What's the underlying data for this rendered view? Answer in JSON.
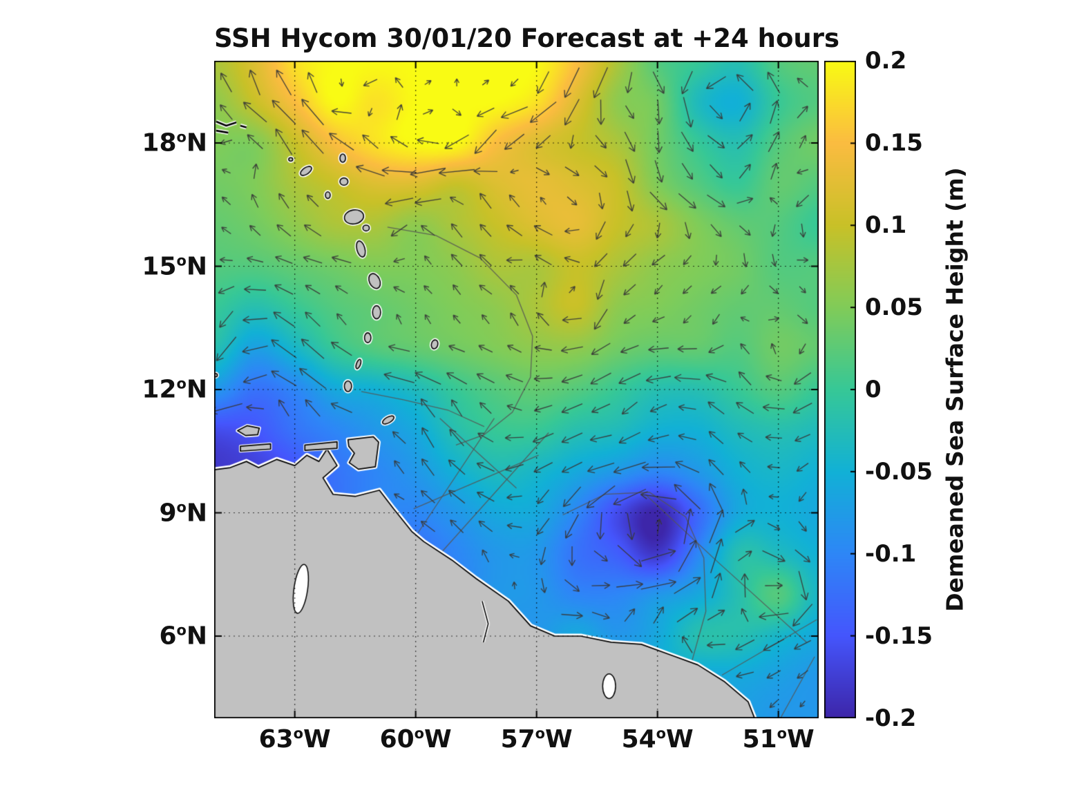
{
  "figure": {
    "title": "SSH Hycom 30/01/20 Forecast at +24 hours",
    "background": "#ffffff"
  },
  "axes": {
    "degree_symbol": "o",
    "x_ticks": [
      {
        "label": "63",
        "hemisphere": "W",
        "lon": -63
      },
      {
        "label": "60",
        "hemisphere": "W",
        "lon": -60
      },
      {
        "label": "57",
        "hemisphere": "W",
        "lon": -57
      },
      {
        "label": "54",
        "hemisphere": "W",
        "lon": -54
      },
      {
        "label": "51",
        "hemisphere": "W",
        "lon": -51
      }
    ],
    "y_ticks": [
      {
        "label": "18",
        "hemisphere": "N",
        "lat": 18
      },
      {
        "label": "15",
        "hemisphere": "N",
        "lat": 15
      },
      {
        "label": "12",
        "hemisphere": "N",
        "lat": 12
      },
      {
        "label": "9",
        "hemisphere": "N",
        "lat": 9
      },
      {
        "label": "6",
        "hemisphere": "N",
        "lat": 6
      }
    ],
    "grid": true
  },
  "colorbar": {
    "label": "Demeaned Sea Surface Height (m)",
    "ticks": [
      "0.2",
      "0.15",
      "0.1",
      "0.05",
      "0",
      "-0.05",
      "-0.1",
      "-0.15",
      "-0.2"
    ],
    "tick_values": [
      0.2,
      0.15,
      0.1,
      0.05,
      0,
      -0.05,
      -0.1,
      -0.15,
      -0.2
    ],
    "range": [
      -0.2,
      0.2
    ],
    "colormap": [
      "#3D26A9",
      "#4556FD",
      "#2E87F7",
      "#12B1D6",
      "#37C897",
      "#81CC59",
      "#C9C128",
      "#FBBC41",
      "#F9FB14"
    ]
  },
  "chart_data": {
    "type": "heatmap",
    "title": "SSH Hycom 30/01/20 Forecast at +24 hours",
    "units": "m",
    "colorbar_label": "Demeaned Sea Surface Height (m)",
    "colorbar_range": [
      -0.2,
      0.2
    ],
    "x_tick_labels": [
      "63°W",
      "60°W",
      "57°W",
      "54°W",
      "51°W"
    ],
    "y_tick_labels": [
      "18°N",
      "15°N",
      "12°N",
      "9°N",
      "6°N"
    ],
    "lon_range": [
      -65,
      -50
    ],
    "lat_range": [
      4,
      20
    ],
    "lon": [
      -65,
      -64,
      -63,
      -62,
      -61,
      -60,
      -59,
      -58,
      -57,
      -56,
      -55,
      -54,
      -53,
      -52,
      -51,
      -50
    ],
    "lat": [
      20,
      19,
      18,
      17,
      16,
      15,
      14,
      13,
      12,
      11,
      10,
      9,
      8,
      7,
      6,
      5,
      4
    ],
    "ssh_m": [
      [
        0.08,
        0.12,
        0.18,
        0.2,
        0.2,
        0.2,
        0.2,
        0.2,
        0.2,
        0.15,
        0.08,
        0.02,
        0.0,
        -0.02,
        0.02,
        0.03
      ],
      [
        0.06,
        0.1,
        0.15,
        0.2,
        0.18,
        0.2,
        0.2,
        0.2,
        0.18,
        0.12,
        0.06,
        0.04,
        -0.03,
        -0.05,
        0.0,
        0.02
      ],
      [
        0.05,
        0.05,
        0.1,
        0.15,
        0.18,
        0.2,
        0.2,
        0.15,
        0.12,
        0.1,
        0.08,
        0.04,
        0.0,
        -0.02,
        0.02,
        0.04
      ],
      [
        0.04,
        0.05,
        0.08,
        0.1,
        0.12,
        0.12,
        0.1,
        0.12,
        0.13,
        0.12,
        0.1,
        0.05,
        0.02,
        0.0,
        0.03,
        0.02
      ],
      [
        0.03,
        0.04,
        0.06,
        0.08,
        0.08,
        0.06,
        0.08,
        0.1,
        0.12,
        0.13,
        0.1,
        0.08,
        0.05,
        0.03,
        0.02,
        0.0
      ],
      [
        0.02,
        0.02,
        0.03,
        0.04,
        0.05,
        0.05,
        0.06,
        0.08,
        0.08,
        0.1,
        0.08,
        0.06,
        0.05,
        0.04,
        0.02,
        0.02
      ],
      [
        0.0,
        -0.02,
        0.0,
        0.02,
        0.03,
        0.04,
        0.05,
        0.06,
        0.08,
        0.1,
        0.06,
        0.05,
        0.04,
        0.03,
        0.03,
        0.02
      ],
      [
        -0.02,
        -0.07,
        -0.04,
        0.0,
        0.02,
        0.03,
        0.04,
        0.05,
        0.06,
        0.06,
        0.04,
        0.03,
        0.03,
        0.02,
        0.04,
        0.03
      ],
      [
        -0.08,
        -0.12,
        -0.1,
        -0.06,
        -0.05,
        -0.03,
        0.0,
        0.02,
        0.03,
        0.02,
        0.0,
        -0.02,
        -0.02,
        0.0,
        0.02,
        0.0
      ],
      [
        -0.16,
        -0.15,
        -0.12,
        -0.1,
        -0.08,
        -0.06,
        -0.02,
        0.0,
        0.0,
        -0.02,
        -0.03,
        -0.05,
        -0.05,
        -0.03,
        -0.02,
        -0.03
      ],
      [
        -0.18,
        -0.17,
        -0.15,
        -0.12,
        -0.1,
        -0.08,
        -0.05,
        -0.03,
        -0.04,
        -0.06,
        -0.08,
        -0.1,
        -0.08,
        -0.05,
        -0.04,
        -0.05
      ],
      [
        -0.15,
        -0.14,
        -0.13,
        -0.12,
        -0.1,
        -0.1,
        -0.08,
        -0.06,
        -0.06,
        -0.1,
        -0.16,
        -0.2,
        -0.13,
        -0.06,
        -0.05,
        -0.06
      ],
      [
        -0.13,
        -0.13,
        -0.12,
        -0.12,
        -0.12,
        -0.12,
        -0.1,
        -0.08,
        -0.08,
        -0.12,
        -0.14,
        -0.18,
        -0.1,
        -0.02,
        -0.03,
        -0.05
      ],
      [
        -0.12,
        -0.12,
        -0.12,
        -0.11,
        -0.1,
        -0.1,
        -0.1,
        -0.08,
        -0.08,
        -0.1,
        -0.1,
        -0.08,
        -0.06,
        -0.02,
        0.02,
        -0.04
      ],
      [
        -0.1,
        -0.1,
        -0.1,
        -0.1,
        -0.09,
        -0.09,
        -0.08,
        -0.08,
        -0.08,
        -0.06,
        -0.08,
        -0.06,
        -0.02,
        -0.02,
        -0.04,
        -0.06
      ],
      [
        -0.09,
        -0.09,
        -0.09,
        -0.09,
        -0.08,
        -0.08,
        -0.08,
        -0.07,
        -0.06,
        -0.06,
        -0.06,
        -0.05,
        -0.06,
        -0.06,
        -0.07,
        -0.08
      ],
      [
        -0.08,
        -0.08,
        -0.08,
        -0.08,
        -0.08,
        -0.08,
        -0.07,
        -0.07,
        -0.06,
        -0.06,
        -0.05,
        -0.05,
        -0.06,
        -0.07,
        -0.08,
        -0.08
      ]
    ],
    "vectors": "surface current direction arrows (quiver) following SSH contours; cyclonic around the low near 54.5W 9N",
    "quiver_color": "#373737"
  },
  "map": {
    "land_color": "#c1c1c1",
    "boundary_color": "#555555",
    "mask_coast": [
      [
        -65.4,
        10.1
      ],
      [
        -63.0,
        10.3
      ],
      [
        -62.0,
        10.6
      ],
      [
        -61.5,
        9.6
      ],
      [
        -60.6,
        9.3
      ],
      [
        -59.8,
        8.4
      ],
      [
        -58.5,
        7.5
      ],
      [
        -57.2,
        6.4
      ],
      [
        -55.9,
        6.1
      ],
      [
        -54.4,
        5.9
      ],
      [
        -53.0,
        5.4
      ],
      [
        -52.3,
        5.0
      ],
      [
        -51.6,
        4.4
      ],
      [
        -51.2,
        3.8
      ],
      [
        -50.0,
        3.0
      ]
    ],
    "land_polygons": [
      {
        "name": "south-america-mainland",
        "halo": 7,
        "points": [
          [
            -65.4,
            10.0
          ],
          [
            -64.6,
            10.1
          ],
          [
            -64.2,
            10.25
          ],
          [
            -63.9,
            10.1
          ],
          [
            -63.45,
            10.3
          ],
          [
            -63.0,
            10.15
          ],
          [
            -62.7,
            10.4
          ],
          [
            -62.4,
            10.25
          ],
          [
            -62.2,
            10.55
          ],
          [
            -61.95,
            10.15
          ],
          [
            -62.3,
            9.85
          ],
          [
            -62.05,
            9.45
          ],
          [
            -61.5,
            9.4
          ],
          [
            -60.9,
            9.55
          ],
          [
            -60.55,
            9.1
          ],
          [
            -60.1,
            8.55
          ],
          [
            -59.8,
            8.3
          ],
          [
            -59.1,
            7.85
          ],
          [
            -58.5,
            7.4
          ],
          [
            -57.7,
            6.85
          ],
          [
            -57.15,
            6.25
          ],
          [
            -56.55,
            6.0
          ],
          [
            -55.9,
            6.0
          ],
          [
            -55.15,
            5.85
          ],
          [
            -54.4,
            5.8
          ],
          [
            -53.7,
            5.55
          ],
          [
            -53.0,
            5.3
          ],
          [
            -52.35,
            4.9
          ],
          [
            -51.75,
            4.4
          ],
          [
            -51.55,
            3.9
          ],
          [
            -51.4,
            3.5
          ],
          [
            -65.5,
            3.5
          ],
          [
            -65.5,
            10.0
          ]
        ]
      },
      {
        "name": "trinidad",
        "halo": 6,
        "points": [
          [
            -61.68,
            10.78
          ],
          [
            -61.05,
            10.85
          ],
          [
            -60.92,
            10.72
          ],
          [
            -61.0,
            10.12
          ],
          [
            -61.42,
            10.06
          ],
          [
            -61.65,
            10.22
          ],
          [
            -61.52,
            10.45
          ],
          [
            -61.66,
            10.62
          ]
        ]
      },
      {
        "name": "margarita",
        "halo": 5,
        "points": [
          [
            -64.42,
            11.0
          ],
          [
            -64.18,
            11.12
          ],
          [
            -63.88,
            11.06
          ],
          [
            -63.92,
            10.9
          ],
          [
            -64.22,
            10.88
          ]
        ]
      },
      {
        "name": "araya-peninsula",
        "halo": 4,
        "points": [
          [
            -64.35,
            10.62
          ],
          [
            -63.6,
            10.68
          ],
          [
            -63.6,
            10.55
          ],
          [
            -64.35,
            10.5
          ]
        ]
      },
      {
        "name": "paria-peninsula",
        "halo": 4,
        "points": [
          [
            -62.75,
            10.65
          ],
          [
            -61.95,
            10.73
          ],
          [
            -61.95,
            10.57
          ],
          [
            -62.75,
            10.52
          ]
        ]
      }
    ],
    "islands": [
      {
        "name": "grenada",
        "lon": -61.68,
        "lat": 12.08,
        "rx": 0.09,
        "ry": 0.13,
        "rot": 0
      },
      {
        "name": "grenadines",
        "lon": -61.42,
        "lat": 12.62,
        "rx": 0.05,
        "ry": 0.12,
        "rot": 20
      },
      {
        "name": "st-vincent",
        "lon": -61.19,
        "lat": 13.26,
        "rx": 0.08,
        "ry": 0.12,
        "rot": 0
      },
      {
        "name": "st-lucia",
        "lon": -60.97,
        "lat": 13.88,
        "rx": 0.1,
        "ry": 0.16,
        "rot": 0
      },
      {
        "name": "martinique",
        "lon": -61.02,
        "lat": 14.64,
        "rx": 0.13,
        "ry": 0.19,
        "rot": -25
      },
      {
        "name": "dominica",
        "lon": -61.36,
        "lat": 15.42,
        "rx": 0.1,
        "ry": 0.2,
        "rot": -15
      },
      {
        "name": "marie-galante",
        "lon": -61.23,
        "lat": 15.93,
        "rx": 0.08,
        "ry": 0.07,
        "rot": 0
      },
      {
        "name": "guadeloupe",
        "lon": -61.53,
        "lat": 16.2,
        "rx": 0.24,
        "ry": 0.17,
        "rot": -10
      },
      {
        "name": "montserrat",
        "lon": -62.18,
        "lat": 16.73,
        "rx": 0.06,
        "ry": 0.08,
        "rot": 0
      },
      {
        "name": "antigua",
        "lon": -61.78,
        "lat": 17.06,
        "rx": 0.1,
        "ry": 0.09,
        "rot": 0
      },
      {
        "name": "barbuda",
        "lon": -61.81,
        "lat": 17.63,
        "rx": 0.07,
        "ry": 0.1,
        "rot": 0
      },
      {
        "name": "st-kitts-nevis",
        "lon": -62.72,
        "lat": 17.32,
        "rx": 0.16,
        "ry": 0.08,
        "rot": -35
      },
      {
        "name": "st-barth-area",
        "lon": -63.1,
        "lat": 17.6,
        "rx": 0.05,
        "ry": 0.04,
        "rot": 0
      },
      {
        "name": "barbados",
        "lon": -59.53,
        "lat": 13.1,
        "rx": 0.08,
        "ry": 0.11,
        "rot": 15
      },
      {
        "name": "tobago",
        "lon": -60.68,
        "lat": 11.26,
        "rx": 0.16,
        "ry": 0.07,
        "rot": -30
      },
      {
        "name": "los-testigos",
        "lon": -64.97,
        "lat": 12.35,
        "rx": 0.05,
        "ry": 0.04,
        "rot": 0
      }
    ],
    "lakes": [
      {
        "name": "guri-reservoir",
        "lon": -62.85,
        "lat": 7.15,
        "rx": 0.17,
        "ry": 0.6,
        "rot": 8
      },
      {
        "name": "coastal-lagoon",
        "lon": -55.2,
        "lat": 4.78,
        "rx": 0.16,
        "ry": 0.3,
        "rot": 0
      }
    ],
    "rivers": [
      [
        [
          -58.35,
          6.85
        ],
        [
          -58.2,
          6.3
        ],
        [
          -58.32,
          5.85
        ]
      ]
    ],
    "black_marks": [
      [
        [
          -64.95,
          18.52
        ],
        [
          -64.7,
          18.42
        ],
        [
          -64.45,
          18.5
        ]
      ],
      [
        [
          -64.95,
          18.3
        ],
        [
          -64.65,
          18.25
        ]
      ],
      [
        [
          -64.35,
          18.42
        ],
        [
          -64.2,
          18.38
        ]
      ]
    ],
    "boundaries": [
      {
        "name": "eez-arc-east-antilles",
        "points": [
          [
            -60.7,
            15.95
          ],
          [
            -59.5,
            15.75
          ],
          [
            -58.4,
            15.2
          ],
          [
            -57.5,
            14.3
          ],
          [
            -57.1,
            13.3
          ],
          [
            -57.15,
            12.3
          ],
          [
            -57.6,
            11.45
          ],
          [
            -58.3,
            10.9
          ],
          [
            -59.0,
            10.65
          ]
        ]
      },
      {
        "name": "boundary-tobago-east",
        "points": [
          [
            -61.35,
            11.95
          ],
          [
            -60.3,
            11.75
          ],
          [
            -59.2,
            11.5
          ],
          [
            -58.3,
            11.1
          ]
        ]
      },
      {
        "name": "guyana-offshore-1",
        "points": [
          [
            -59.95,
            8.5
          ],
          [
            -58.05,
            11.3
          ]
        ]
      },
      {
        "name": "guyana-offshore-2",
        "points": [
          [
            -59.35,
            8.05
          ],
          [
            -56.7,
            10.95
          ]
        ]
      },
      {
        "name": "guyana-offshore-3",
        "points": [
          [
            -60.05,
            9.1
          ],
          [
            -56.95,
            10.4
          ]
        ]
      },
      {
        "name": "guyana-offshore-4",
        "points": [
          [
            -59.4,
            11.3
          ],
          [
            -57.5,
            9.6
          ]
        ]
      },
      {
        "name": "suriname-arc",
        "points": [
          [
            -56.35,
            8.95
          ],
          [
            -55.3,
            9.45
          ],
          [
            -54.2,
            9.5
          ],
          [
            -53.3,
            8.9
          ],
          [
            -52.85,
            7.9
          ],
          [
            -52.8,
            6.6
          ],
          [
            -53.2,
            5.2
          ],
          [
            -53.5,
            4.4
          ]
        ]
      },
      {
        "name": "fr-guiana-line",
        "points": [
          [
            -54.3,
            9.45
          ],
          [
            -52.5,
            7.8
          ],
          [
            -50.3,
            5.85
          ]
        ]
      },
      {
        "name": "corner-line-1",
        "points": [
          [
            -52.4,
            5.05
          ],
          [
            -50.05,
            6.4
          ]
        ]
      },
      {
        "name": "corner-line-2",
        "points": [
          [
            -50.95,
            4.0
          ],
          [
            -50.1,
            5.5
          ]
        ]
      }
    ],
    "quiver_blockers": [
      [
        -61.3,
        10.5,
        0.55,
        0.45
      ],
      [
        -64.15,
        11.0,
        0.4,
        0.2
      ],
      [
        -63.0,
        10.6,
        1.5,
        0.12
      ]
    ]
  }
}
